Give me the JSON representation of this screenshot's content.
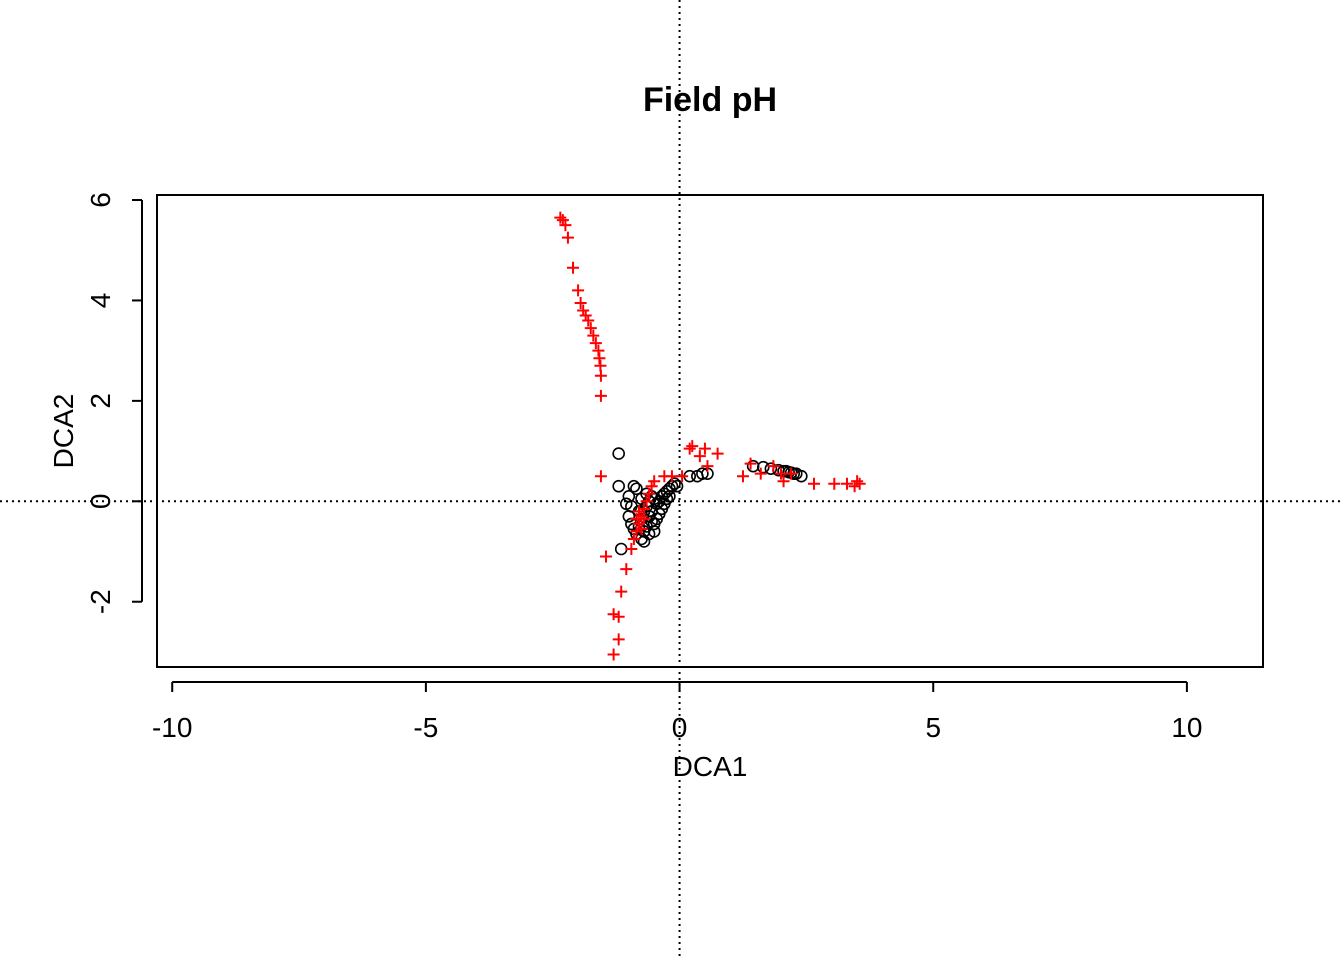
{
  "chart_data": {
    "type": "scatter",
    "title": "Field pH",
    "xlabel": "DCA1",
    "ylabel": "DCA2",
    "xlim": [
      -10.3,
      11.5
    ],
    "ylim": [
      -3.3,
      6.1
    ],
    "x_ticks": [
      -10,
      -5,
      0,
      5,
      10
    ],
    "y_ticks": [
      -2,
      0,
      2,
      4,
      6
    ],
    "reference_lines": {
      "x": 0,
      "y": 0,
      "style": "dotted"
    },
    "grid": false,
    "legend": "none",
    "colors": {
      "sites": "#000000",
      "species": "#ff0000"
    },
    "series": [
      {
        "marker": "circle",
        "color": "#000000",
        "points": [
          [
            -1.2,
            0.95
          ],
          [
            -1.2,
            0.3
          ],
          [
            -0.9,
            0.3
          ],
          [
            -0.85,
            0.25
          ],
          [
            -1.0,
            0.1
          ],
          [
            -1.05,
            -0.05
          ],
          [
            -0.95,
            -0.1
          ],
          [
            -1.0,
            -0.3
          ],
          [
            -0.95,
            -0.45
          ],
          [
            -0.9,
            -0.55
          ],
          [
            -0.85,
            -0.65
          ],
          [
            -0.75,
            -0.75
          ],
          [
            -0.7,
            -0.8
          ],
          [
            -1.15,
            -0.95
          ],
          [
            -0.8,
            -0.5
          ],
          [
            -0.75,
            -0.35
          ],
          [
            -0.7,
            -0.2
          ],
          [
            -0.65,
            -0.1
          ],
          [
            -0.6,
            0.0
          ],
          [
            -0.55,
            0.1
          ],
          [
            -0.5,
            0.05
          ],
          [
            -0.45,
            -0.05
          ],
          [
            -0.4,
            0.0
          ],
          [
            -0.35,
            0.1
          ],
          [
            -0.3,
            0.15
          ],
          [
            -0.25,
            0.2
          ],
          [
            -0.2,
            0.25
          ],
          [
            -0.15,
            0.3
          ],
          [
            -0.1,
            0.35
          ],
          [
            -0.05,
            0.3
          ],
          [
            -0.6,
            -0.3
          ],
          [
            -0.55,
            -0.4
          ],
          [
            -0.65,
            -0.5
          ],
          [
            -0.5,
            -0.45
          ],
          [
            -0.45,
            -0.35
          ],
          [
            -0.4,
            -0.25
          ],
          [
            -0.35,
            -0.15
          ],
          [
            -0.3,
            -0.05
          ],
          [
            -0.25,
            0.05
          ],
          [
            -0.2,
            0.1
          ],
          [
            -0.7,
            -0.6
          ],
          [
            -0.6,
            -0.65
          ],
          [
            -0.5,
            -0.6
          ],
          [
            -0.8,
            -0.2
          ],
          [
            -0.75,
            0.05
          ],
          [
            -0.65,
            0.15
          ],
          [
            -0.55,
            -0.2
          ],
          [
            0.2,
            0.5
          ],
          [
            0.35,
            0.5
          ],
          [
            0.45,
            0.55
          ],
          [
            0.55,
            0.55
          ],
          [
            1.45,
            0.7
          ],
          [
            1.65,
            0.68
          ],
          [
            1.8,
            0.65
          ],
          [
            1.95,
            0.62
          ],
          [
            2.05,
            0.6
          ],
          [
            2.1,
            0.6
          ],
          [
            2.15,
            0.58
          ],
          [
            2.2,
            0.57
          ],
          [
            2.25,
            0.55
          ],
          [
            2.3,
            0.55
          ],
          [
            2.4,
            0.5
          ]
        ]
      },
      {
        "marker": "plus",
        "color": "#ff0000",
        "points": [
          [
            -2.35,
            5.65
          ],
          [
            -2.3,
            5.6
          ],
          [
            -2.25,
            5.5
          ],
          [
            -2.2,
            5.25
          ],
          [
            -2.1,
            4.65
          ],
          [
            -2.0,
            4.2
          ],
          [
            -1.95,
            3.95
          ],
          [
            -1.9,
            3.8
          ],
          [
            -1.85,
            3.7
          ],
          [
            -1.8,
            3.6
          ],
          [
            -1.75,
            3.45
          ],
          [
            -1.7,
            3.3
          ],
          [
            -1.65,
            3.15
          ],
          [
            -1.6,
            3.0
          ],
          [
            -1.58,
            2.85
          ],
          [
            -1.56,
            2.7
          ],
          [
            -1.55,
            2.5
          ],
          [
            -1.55,
            2.1
          ],
          [
            -1.55,
            0.5
          ],
          [
            -1.45,
            -1.1
          ],
          [
            -1.3,
            -2.25
          ],
          [
            -1.2,
            -2.3
          ],
          [
            -1.15,
            -1.8
          ],
          [
            -1.2,
            -2.75
          ],
          [
            -1.3,
            -3.05
          ],
          [
            -1.05,
            -1.35
          ],
          [
            -0.95,
            -0.95
          ],
          [
            -0.9,
            -0.75
          ],
          [
            -0.85,
            -0.6
          ],
          [
            -0.8,
            -0.45
          ],
          [
            -0.75,
            -0.3
          ],
          [
            -0.7,
            -0.15
          ],
          [
            -0.65,
            0.0
          ],
          [
            -0.6,
            0.15
          ],
          [
            -0.55,
            0.3
          ],
          [
            -0.5,
            0.4
          ],
          [
            -0.85,
            -0.35
          ],
          [
            -0.8,
            -0.2
          ],
          [
            -0.7,
            -0.35
          ],
          [
            -0.75,
            -0.55
          ],
          [
            -0.3,
            0.5
          ],
          [
            -0.15,
            0.5
          ],
          [
            0.05,
            0.5
          ],
          [
            0.2,
            1.05
          ],
          [
            0.25,
            1.1
          ],
          [
            0.4,
            0.9
          ],
          [
            0.5,
            1.05
          ],
          [
            0.55,
            0.7
          ],
          [
            0.75,
            0.95
          ],
          [
            1.25,
            0.5
          ],
          [
            1.4,
            0.75
          ],
          [
            1.6,
            0.55
          ],
          [
            1.85,
            0.7
          ],
          [
            2.0,
            0.55
          ],
          [
            2.05,
            0.4
          ],
          [
            2.2,
            0.55
          ],
          [
            2.65,
            0.35
          ],
          [
            3.05,
            0.35
          ],
          [
            3.3,
            0.35
          ],
          [
            3.45,
            0.3
          ],
          [
            3.5,
            0.4
          ],
          [
            3.55,
            0.35
          ]
        ]
      }
    ]
  }
}
